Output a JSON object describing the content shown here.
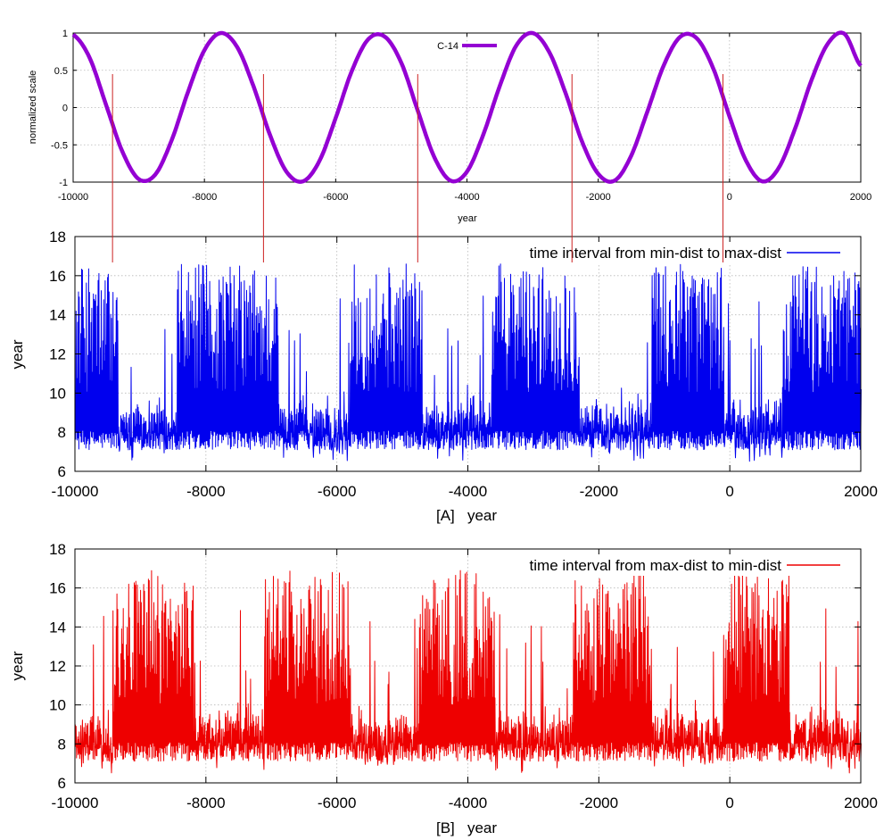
{
  "chart_data": [
    {
      "type": "line",
      "id": "c14",
      "xlabel": "year",
      "ylabel": "normalized scale",
      "xlim": [
        -10000,
        2000
      ],
      "ylim": [
        -1,
        1
      ],
      "xticks": [
        -10000,
        -8000,
        -6000,
        -4000,
        -2000,
        0,
        2000
      ],
      "yticks": [
        -1,
        -0.5,
        0,
        0.5,
        1
      ],
      "yticklabels": [
        "-1",
        "-0.5",
        "0",
        "0.5",
        "1"
      ],
      "legend": {
        "label": "C-14",
        "position": "top-center"
      },
      "color": "#9400d3",
      "grid": true,
      "series": [
        {
          "name": "C-14",
          "x": [
            -10000,
            -9750,
            -9500,
            -9250,
            -9000,
            -8750,
            -8500,
            -8250,
            -8000,
            -7750,
            -7500,
            -7250,
            -7000,
            -6750,
            -6500,
            -6250,
            -6000,
            -5750,
            -5500,
            -5250,
            -5000,
            -4750,
            -4500,
            -4250,
            -4000,
            -3750,
            -3500,
            -3250,
            -3000,
            -2750,
            -2500,
            -2250,
            -2000,
            -1750,
            -1500,
            -1250,
            -1000,
            -750,
            -500,
            -250,
            0,
            250,
            500,
            750,
            1000,
            1250,
            1500,
            1750,
            2000
          ],
          "y": [
            0.98,
            0.67,
            0.04,
            -0.59,
            -0.96,
            -0.9,
            -0.44,
            0.21,
            0.77,
            1.0,
            0.81,
            0.28,
            -0.37,
            -0.86,
            -0.99,
            -0.72,
            -0.14,
            0.5,
            0.92,
            0.95,
            0.6,
            -0.04,
            -0.66,
            -0.98,
            -0.86,
            -0.36,
            0.29,
            0.83,
            1.0,
            0.75,
            0.2,
            -0.45,
            -0.89,
            -0.98,
            -0.65,
            -0.05,
            0.57,
            0.95,
            0.93,
            0.53,
            -0.12,
            -0.71,
            -0.99,
            -0.81,
            -0.28,
            0.37,
            0.86,
            0.99,
            0.56
          ]
        }
      ],
      "markers": {
        "x": [
          -9400,
          -7100,
          -4750,
          -2400,
          -100
        ],
        "color": "#cc2222"
      }
    },
    {
      "type": "line",
      "id": "panelA",
      "xlabel": "[A]   year",
      "ylabel": "year",
      "xlim": [
        -10000,
        2000
      ],
      "ylim": [
        6,
        18
      ],
      "xticks": [
        -10000,
        -8000,
        -6000,
        -4000,
        -2000,
        0,
        2000
      ],
      "yticks": [
        6,
        8,
        10,
        12,
        14,
        16,
        18
      ],
      "legend": {
        "label": "time interval from min-dist to max-dist",
        "position": "top-right"
      },
      "color": "#0000ee",
      "grid": true,
      "series": [
        {
          "name": "time interval from min-dist to max-dist",
          "model": "oscillation between a trough near 7.6 years and peaks near 16 years, with dense-peak epochs alternating with sparse, low-amplitude epochs",
          "baseline": 7.6,
          "peak_max": 16.6,
          "low_min": 6.5,
          "cycle_years": 12,
          "active_epochs": [
            [
              -10000,
              -9350
            ],
            [
              -8450,
              -6900
            ],
            [
              -5800,
              -4700
            ],
            [
              -3650,
              -2300
            ],
            [
              -1200,
              -100
            ],
            [
              800,
              2000
            ]
          ]
        }
      ]
    },
    {
      "type": "line",
      "id": "panelB",
      "xlabel": "[B]   year",
      "ylabel": "year",
      "xlim": [
        -10000,
        2000
      ],
      "ylim": [
        6,
        18
      ],
      "xticks": [
        -10000,
        -8000,
        -6000,
        -4000,
        -2000,
        0,
        2000
      ],
      "yticks": [
        6,
        8,
        10,
        12,
        14,
        16,
        18
      ],
      "legend": {
        "label": "time interval from max-dist to min-dist",
        "position": "top-right"
      },
      "color": "#ee0000",
      "grid": true,
      "series": [
        {
          "name": "time interval from max-dist to min-dist",
          "model": "oscillation between a trough near 7.6 years and peaks near 16 years, with dense-peak epochs alternating with sparse, low-amplitude epochs",
          "baseline": 7.6,
          "peak_max": 16.9,
          "low_min": 6.5,
          "cycle_years": 12,
          "active_epochs": [
            [
              -9400,
              -8200
            ],
            [
              -7100,
              -5800
            ],
            [
              -4750,
              -3600
            ],
            [
              -2400,
              -1200
            ],
            [
              -100,
              900
            ]
          ]
        }
      ]
    }
  ]
}
